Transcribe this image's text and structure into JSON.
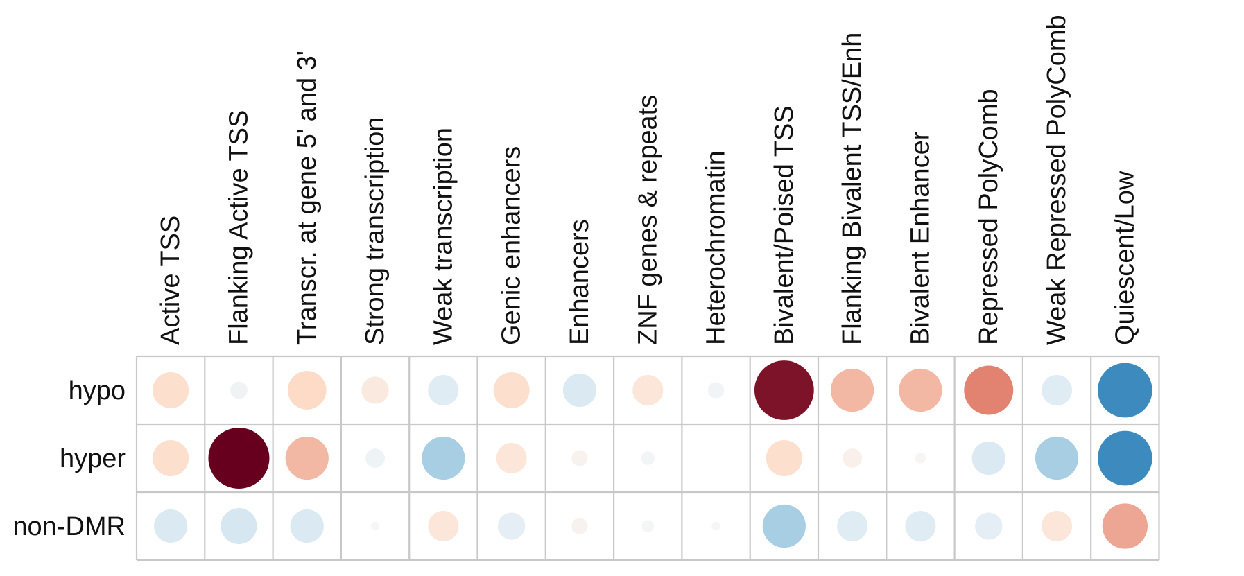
{
  "chart_data": {
    "type": "heatmap",
    "title": "",
    "xlabel": "",
    "ylabel": "",
    "columns": [
      "Active TSS",
      "Flanking Active TSS",
      "Transcr. at gene 5' and 3'",
      "Strong transcription",
      "Weak transcription",
      "Genic enhancers",
      "Enhancers",
      "ZNF genes & repeats",
      "Heterochromatin",
      "Bivalent/Poised TSS",
      "Flanking Bivalent TSS/Enh",
      "Bivalent Enhancer",
      "Repressed PolyComb",
      "Weak Repressed PolyComb",
      "Quiescent/Low"
    ],
    "rows": [
      "hypo",
      "hyper",
      "non-DMR"
    ],
    "value_range": [
      -1,
      1
    ],
    "values": [
      [
        0.35,
        -0.08,
        0.4,
        0.2,
        -0.25,
        0.35,
        -0.3,
        0.25,
        -0.07,
        0.95,
        0.5,
        0.5,
        0.65,
        -0.25,
        -0.8
      ],
      [
        0.35,
        1.0,
        0.5,
        -0.1,
        -0.5,
        0.25,
        0.07,
        -0.05,
        0.0,
        0.35,
        0.1,
        0.03,
        -0.3,
        -0.5,
        -0.8
      ],
      [
        -0.3,
        -0.35,
        -0.3,
        0.02,
        0.25,
        -0.2,
        0.07,
        -0.04,
        0.02,
        -0.5,
        -0.25,
        -0.25,
        -0.2,
        0.25,
        0.55
      ]
    ],
    "grid": true,
    "legend": "none",
    "colors": {
      "negative_strong": "#2166ac",
      "negative_mid": "#4393c3",
      "negative_light": "#d1e5f0",
      "neutral": "#f7f7f7",
      "positive_light": "#fddbc7",
      "positive_mid": "#d6604d",
      "positive_strong": "#67001f",
      "grid_line": "#c8c8c8"
    }
  }
}
